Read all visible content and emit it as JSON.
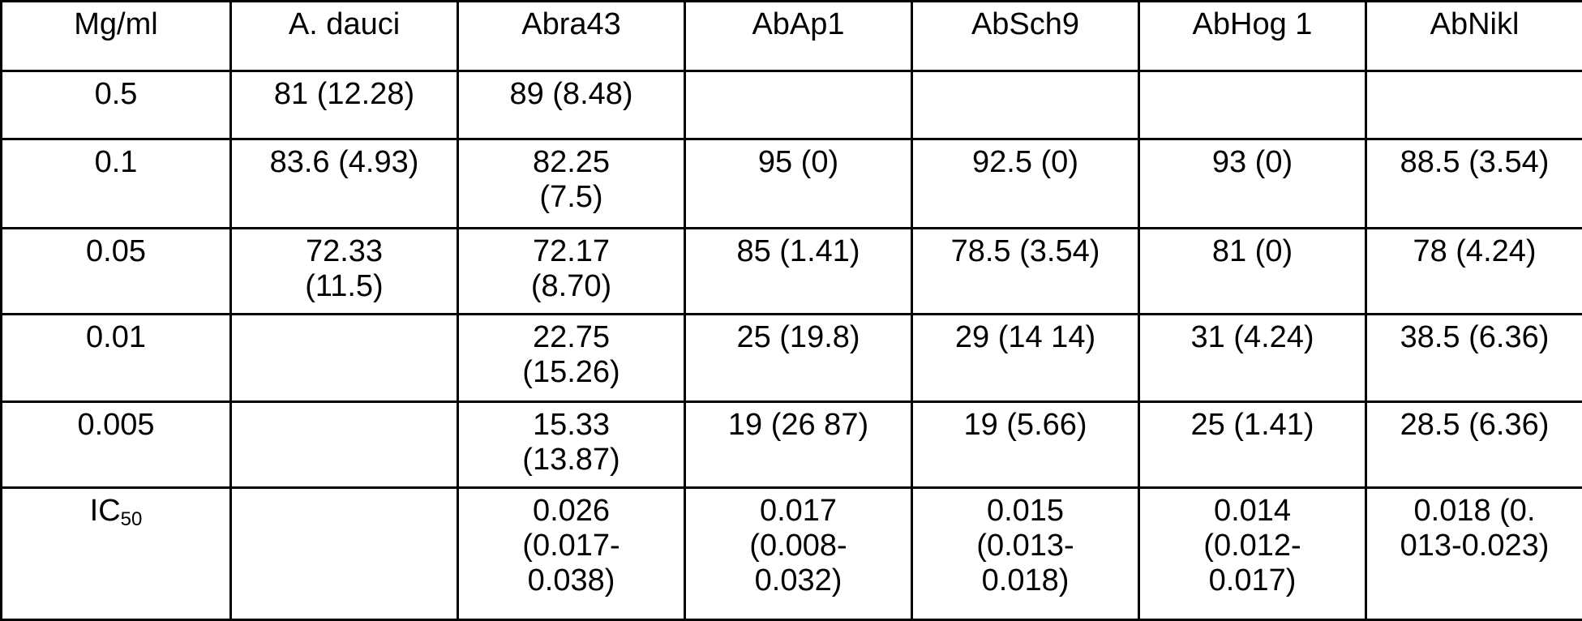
{
  "table": {
    "headers": [
      "Mg/ml",
      "A. dauci",
      "Abra43",
      "AbAp1",
      "AbSch9",
      "AbHog 1",
      "AbNikl"
    ],
    "rows": [
      [
        "0.5",
        "81 (12.28)",
        "89 (8.48)",
        "",
        "",
        "",
        ""
      ],
      [
        "0.1",
        "83.6 (4.93)",
        "82.25\n(7.5)",
        "95 (0)",
        "92.5 (0)",
        "93 (0)",
        "88.5 (3.54)"
      ],
      [
        "0.05",
        "72.33\n(11.5)",
        "72.17\n(8.70)",
        "85 (1.41)",
        "78.5 (3.54)",
        "81 (0)",
        "78 (4.24)"
      ],
      [
        "0.01",
        "",
        "22.75\n(15.26)",
        "25 (19.8)",
        "29 (14 14)",
        "31 (4.24)",
        "38.5 (6.36)"
      ],
      [
        "0.005",
        "",
        "15.33\n(13.87)",
        "19 (26 87)",
        "19 (5.66)",
        "25 (1.41)",
        "28.5 (6.36)"
      ],
      [
        "",
        "",
        "0.026\n(0.017-\n0.038)",
        "0.017\n(0.008-\n0.032)",
        "0.015\n(0.013-\n0.018)",
        "0.014\n(0.012-\n0.017)",
        "0.018 (0.\n013-0.023)"
      ]
    ],
    "ic50_label": {
      "main": "IC",
      "sub": "50"
    }
  }
}
